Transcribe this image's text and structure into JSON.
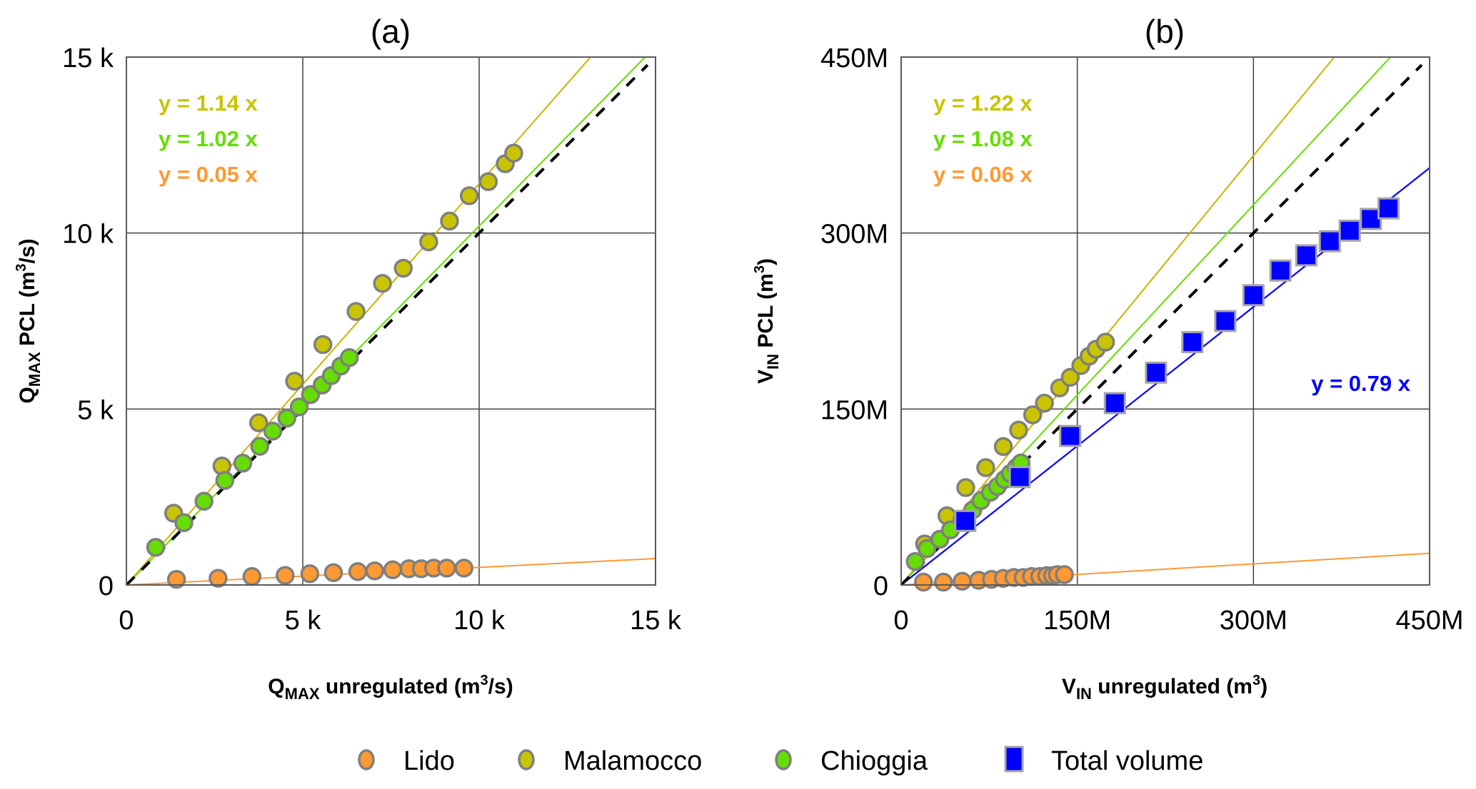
{
  "chart_data": [
    {
      "type": "scatter",
      "panel": "(a)",
      "title": "(a)",
      "xlabel": {
        "main": "Q",
        "sub": "MAX",
        "rest": " unregulated (m",
        "sup": "3",
        "end": "/s)"
      },
      "ylabel": {
        "main": "Q",
        "sub": "MAX",
        "rest": " PCL (m",
        "sup": "3",
        "end": "/s)"
      },
      "xlim": [
        0,
        15000
      ],
      "ylim": [
        0,
        15000
      ],
      "xticks": [
        0,
        5000,
        10000,
        15000
      ],
      "xtick_labels": [
        "0",
        "5 k",
        "10 k",
        "15 k"
      ],
      "yticks": [
        0,
        5000,
        10000,
        15000
      ],
      "ytick_labels": [
        "0",
        "5 k",
        "10 k",
        "15 k"
      ],
      "grid": true,
      "identity_line": {
        "style": "dashed",
        "color": "#000000",
        "slope": 1
      },
      "series": [
        {
          "name": "Lido",
          "color": "#FF9933",
          "marker": "circle",
          "trend_slope": 0.05,
          "equation": "y = 0.05 x",
          "x": [
            1420,
            2600,
            3560,
            4500,
            5200,
            5870,
            6560,
            7040,
            7550,
            8010,
            8360,
            8710,
            9080,
            9570
          ],
          "y": [
            160,
            190,
            240,
            270,
            320,
            350,
            380,
            400,
            430,
            460,
            460,
            480,
            480,
            480
          ]
        },
        {
          "name": "Malamocco",
          "color": "#C8C400",
          "marker": "circle",
          "trend_slope": 1.14,
          "equation": "y = 1.14 x",
          "x": [
            1340,
            2710,
            3750,
            4770,
            5570,
            6510,
            7260,
            7850,
            8570,
            9160,
            9720,
            10260,
            10740,
            10980
          ],
          "y": [
            2040,
            3380,
            4610,
            5790,
            6830,
            7770,
            8570,
            9000,
            9750,
            10340,
            11060,
            11460,
            11970,
            12270
          ]
        },
        {
          "name": "Chioggia",
          "color": "#66DD00",
          "marker": "circle",
          "trend_slope": 1.02,
          "equation": "y = 1.02 x",
          "x": [
            830,
            1630,
            2200,
            2790,
            3300,
            3780,
            4150,
            4550,
            4900,
            5220,
            5550,
            5810,
            6080,
            6320
          ],
          "y": [
            1070,
            1770,
            2380,
            2970,
            3460,
            3940,
            4370,
            4740,
            5060,
            5410,
            5680,
            5950,
            6220,
            6460
          ]
        }
      ]
    },
    {
      "type": "scatter",
      "panel": "(b)",
      "title": "(b)",
      "xlabel": {
        "main": "V",
        "sub": "IN",
        "rest": " unregulated (m",
        "sup": "3",
        "end": ")"
      },
      "ylabel": {
        "main": "V",
        "sub": "IN",
        "rest": " PCL (m",
        "sup": "3",
        "end": ")"
      },
      "xlim": [
        0,
        450000000
      ],
      "ylim": [
        0,
        450000000
      ],
      "xticks": [
        0,
        150000000,
        300000000,
        450000000
      ],
      "xtick_labels": [
        "0",
        "150M",
        "300M",
        "450M"
      ],
      "yticks": [
        0,
        150000000,
        300000000,
        450000000
      ],
      "ytick_labels": [
        "0",
        "150M",
        "300M",
        "450M"
      ],
      "grid": true,
      "identity_line": {
        "style": "dashed",
        "color": "#000000",
        "slope": 1
      },
      "series": [
        {
          "name": "Lido",
          "color": "#FF9933",
          "marker": "circle",
          "trend_slope": 0.06,
          "equation": "y = 0.06 x",
          "x": [
            19000000,
            36000000,
            52000000,
            66000000,
            77000000,
            87000000,
            96000000,
            104000000,
            111000000,
            118000000,
            124000000,
            129000000,
            133000000,
            139000000
          ],
          "y": [
            2400000,
            2400000,
            3200000,
            4000000,
            4800000,
            5600000,
            6400000,
            6400000,
            7200000,
            7200000,
            8000000,
            8000000,
            8800000,
            8800000
          ]
        },
        {
          "name": "Malamocco",
          "color": "#C8C400",
          "marker": "circle",
          "trend_slope": 1.22,
          "equation": "y = 1.22 x",
          "x": [
            20000000,
            39000000,
            55000000,
            72000000,
            87000000,
            100000000,
            112000000,
            122000000,
            135000000,
            144000000,
            153000000,
            160000000,
            166000000,
            174000000
          ],
          "y": [
            35000000,
            59000000,
            83000000,
            100000000,
            118000000,
            132000000,
            145000000,
            155000000,
            168000000,
            177000000,
            187000000,
            195000000,
            201000000,
            207000000
          ]
        },
        {
          "name": "Chioggia",
          "color": "#66DD00",
          "marker": "circle",
          "trend_slope": 1.08,
          "equation": "y = 1.08 x",
          "x": [
            12000000,
            22000000,
            33000000,
            42000000,
            52000000,
            61000000,
            68000000,
            76000000,
            82000000,
            88000000,
            93000000,
            98000000,
            102000000
          ],
          "y": [
            20000000,
            31000000,
            39000000,
            47000000,
            56000000,
            64000000,
            72000000,
            79000000,
            84000000,
            90000000,
            95000000,
            100000000,
            104000000
          ]
        },
        {
          "name": "Total volume",
          "color": "#0000FF",
          "marker": "square",
          "trend_slope": 0.79,
          "equation": "y = 0.79 x",
          "x": [
            54600000,
            101000000,
            144000000,
            182000000,
            217000000,
            248000000,
            276000000,
            300000000,
            323000000,
            345000000,
            365000000,
            382000000,
            400000000,
            415000000
          ],
          "y": [
            54600000,
            92000000,
            127000000,
            155000000,
            181000000,
            207000000,
            225000000,
            247000000,
            268000000,
            281000000,
            293000000,
            302000000,
            312000000,
            321000000
          ]
        }
      ]
    }
  ],
  "legend": {
    "placement": "bottom",
    "items": [
      {
        "label": "Lido",
        "color": "#FF9933",
        "marker": "circle"
      },
      {
        "label": "Malamocco",
        "color": "#C8C400",
        "marker": "circle"
      },
      {
        "label": "Chioggia",
        "color": "#66DD00",
        "marker": "circle"
      },
      {
        "label": "Total volume",
        "color": "#0000FF",
        "marker": "square"
      }
    ]
  },
  "colors": {
    "marker_edge": "#7F7F7F",
    "square_edge": "#A6A6A6",
    "grid": "#000000",
    "identity": "#000000"
  }
}
